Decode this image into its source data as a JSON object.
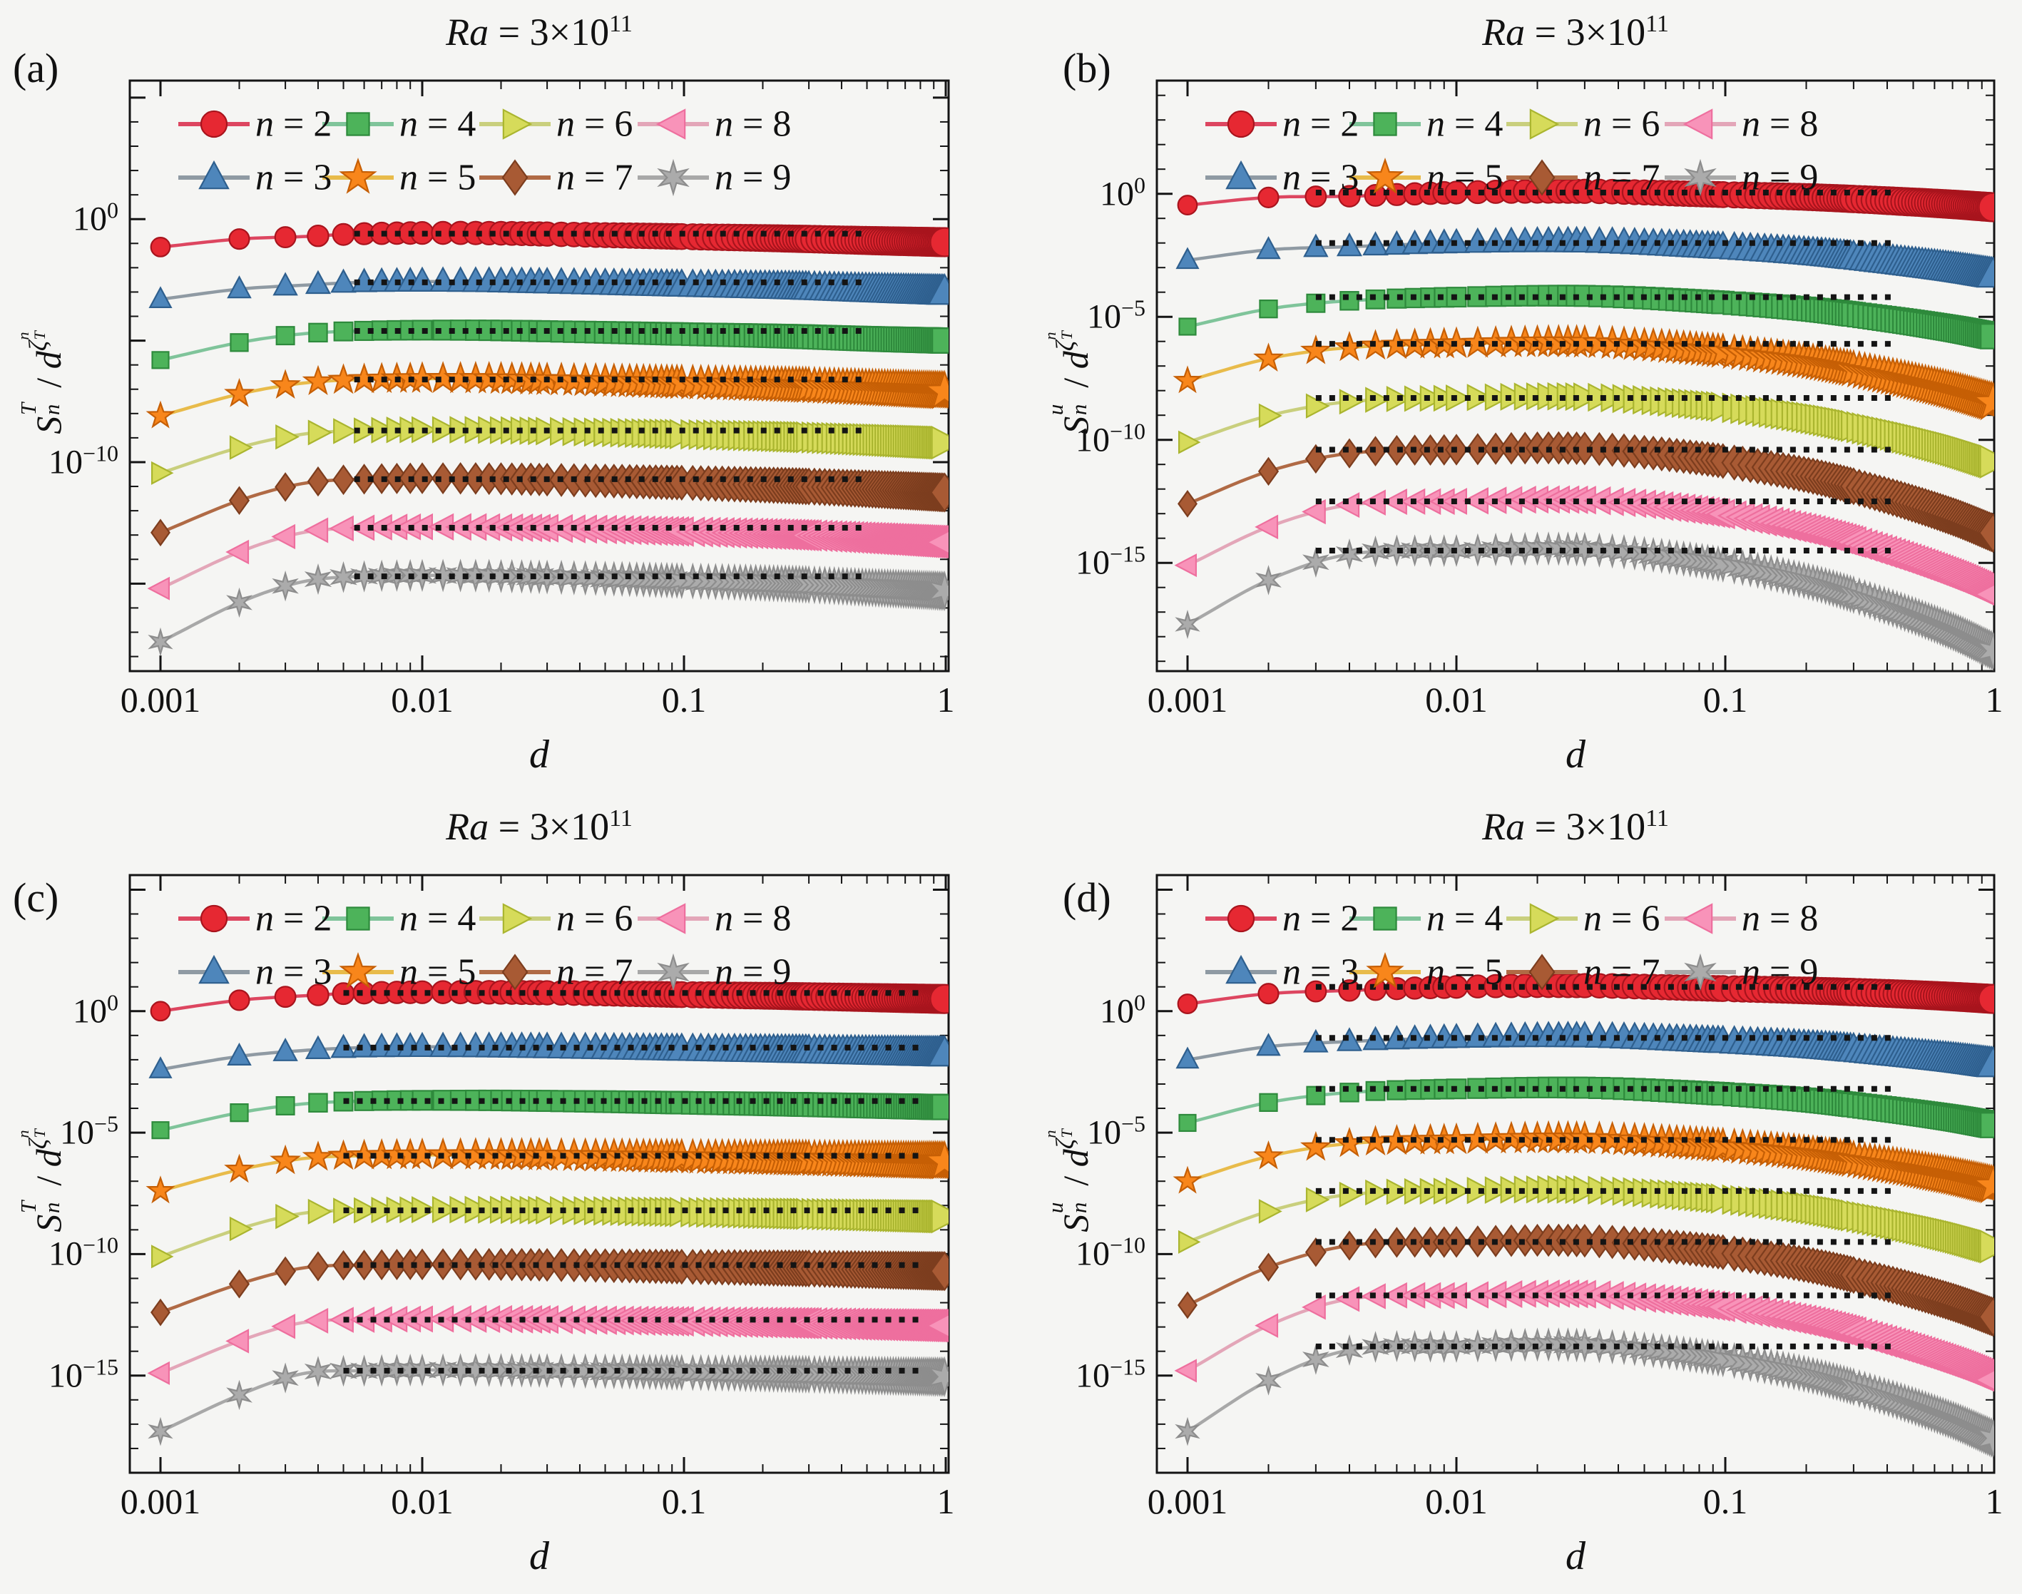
{
  "figure": {
    "background": "#f5f5f3",
    "frame_color": "#141414",
    "dotted_line_color": "#141414",
    "title": {
      "ra": "Ra",
      "eq": " = ",
      "mant": "3×10",
      "exp": "11"
    }
  },
  "legend": {
    "n_symbol": "n",
    "items": [
      {
        "n": 2,
        "suffix": " = 2"
      },
      {
        "n": 3,
        "suffix": " = 3"
      },
      {
        "n": 4,
        "suffix": " = 4"
      },
      {
        "n": 5,
        "suffix": " = 5"
      },
      {
        "n": 6,
        "suffix": " = 6"
      },
      {
        "n": 7,
        "suffix": " = 7"
      },
      {
        "n": 8,
        "suffix": " = 8"
      },
      {
        "n": 9,
        "suffix": " = 9"
      }
    ]
  },
  "series_style": [
    {
      "n": 2,
      "marker": "circle",
      "fill": "#e62832",
      "edge": "#a8141d",
      "line": "#dd4660"
    },
    {
      "n": 3,
      "marker": "tri-up",
      "fill": "#4e86bb",
      "edge": "#2e5f8e",
      "line": "#8f9aa3"
    },
    {
      "n": 4,
      "marker": "square",
      "fill": "#4db35a",
      "edge": "#2e8a3c",
      "line": "#7fc49a"
    },
    {
      "n": 5,
      "marker": "star5",
      "fill": "#f8861b",
      "edge": "#c65f05",
      "line": "#e8bb4a"
    },
    {
      "n": 6,
      "marker": "tri-right",
      "fill": "#d6db5a",
      "edge": "#aab52f",
      "line": "#c9cf7d"
    },
    {
      "n": 7,
      "marker": "diamond",
      "fill": "#a85a34",
      "edge": "#7c3d1e",
      "line": "#b06a45"
    },
    {
      "n": 8,
      "marker": "tri-left",
      "fill": "#f893b9",
      "edge": "#ee6f9e",
      "line": "#e3a6b8"
    },
    {
      "n": 9,
      "marker": "star6",
      "fill": "#ababab",
      "edge": "#8d8d8d",
      "line": "#a8a8a8"
    }
  ],
  "axes": {
    "xlabel": "d",
    "pow_base": "10",
    "xticks": [
      "0.001",
      "0.01",
      "0.1",
      "1"
    ],
    "xtick_exps": [
      -3,
      -2,
      -1,
      0
    ]
  },
  "chart_data": [
    {
      "id": "a",
      "tag": "(a)",
      "type": "line",
      "x_scale": "log",
      "y_scale": "log",
      "title": "Ra = 3×10^11",
      "ylabel": {
        "s": "S",
        "s_sub": "n",
        "s_sup": "T",
        "slash": "/ ",
        "d": "d",
        "zeta": "ζ",
        "zeta_sub": "T",
        "zeta_sup": "n"
      },
      "ylim_log": [
        5.7,
        -18.6
      ],
      "xlim_log": [
        -3.12,
        0.01
      ],
      "ytick_exps": [
        0,
        -10
      ],
      "ytick_labels": [
        "0",
        "−10"
      ],
      "dotted_range": [
        0.0055,
        0.48
      ],
      "anchor_d": [
        0.001,
        0.002,
        0.0035,
        0.006,
        0.015,
        0.04,
        0.1,
        0.25,
        0.5,
        1.0
      ],
      "series": [
        {
          "n": 2,
          "plateau_log": -0.6,
          "values_log": [
            -1.15,
            -0.82,
            -0.72,
            -0.6,
            -0.57,
            -0.64,
            -0.72,
            -0.8,
            -0.88,
            -0.95
          ]
        },
        {
          "n": 3,
          "plateau_log": -2.6,
          "values_log": [
            -3.3,
            -2.88,
            -2.72,
            -2.6,
            -2.57,
            -2.64,
            -2.72,
            -2.8,
            -2.9,
            -3.0
          ]
        },
        {
          "n": 4,
          "plateau_log": -4.6,
          "values_log": [
            -5.8,
            -5.08,
            -4.72,
            -4.6,
            -4.57,
            -4.64,
            -4.73,
            -4.82,
            -4.92,
            -5.0
          ]
        },
        {
          "n": 5,
          "plateau_log": -6.6,
          "values_log": [
            -8.1,
            -7.2,
            -6.75,
            -6.6,
            -6.57,
            -6.65,
            -6.75,
            -6.85,
            -6.97,
            -7.1
          ]
        },
        {
          "n": 6,
          "plateau_log": -8.7,
          "values_log": [
            -10.45,
            -9.4,
            -8.85,
            -8.7,
            -8.67,
            -8.75,
            -8.85,
            -8.95,
            -9.07,
            -9.2
          ]
        },
        {
          "n": 7,
          "plateau_log": -10.7,
          "values_log": [
            -12.9,
            -11.58,
            -10.88,
            -10.7,
            -10.67,
            -10.75,
            -10.85,
            -10.97,
            -11.1,
            -11.25
          ]
        },
        {
          "n": 8,
          "plateau_log": -12.7,
          "values_log": [
            -15.2,
            -13.7,
            -12.9,
            -12.7,
            -12.67,
            -12.75,
            -12.86,
            -12.98,
            -13.13,
            -13.3
          ]
        },
        {
          "n": 9,
          "plateau_log": -14.7,
          "values_log": [
            -17.4,
            -15.78,
            -14.92,
            -14.7,
            -14.67,
            -14.76,
            -14.88,
            -15.0,
            -15.15,
            -15.3
          ]
        }
      ]
    },
    {
      "id": "b",
      "tag": "(b)",
      "type": "line",
      "x_scale": "log",
      "y_scale": "log",
      "title": "Ra = 3×10^11",
      "ylabel": {
        "s": "S",
        "s_sub": "n",
        "s_sup": "u",
        "slash": "/ ",
        "d": "d",
        "zeta": "ζ",
        "zeta_sub": "T",
        "zeta_sup": "n"
      },
      "ylim_log": [
        4.6,
        -19.4
      ],
      "xlim_log": [
        -3.11,
        0.0
      ],
      "ytick_exps": [
        0,
        -5,
        -10,
        -15
      ],
      "ytick_labels": [
        "0",
        "−5",
        "−10",
        "−15"
      ],
      "dotted_range": [
        0.003,
        0.42
      ],
      "anchor_d": [
        0.001,
        0.002,
        0.004,
        0.01,
        0.03,
        0.08,
        0.2,
        0.4,
        0.7,
        1.0
      ],
      "series": [
        {
          "n": 2,
          "plateau_log": 0.05,
          "values_log": [
            -0.46,
            -0.15,
            -0.1,
            0.05,
            0.1,
            -0.01,
            -0.13,
            -0.28,
            -0.43,
            -0.55
          ]
        },
        {
          "n": 3,
          "plateau_log": -2.0,
          "values_log": [
            -2.7,
            -2.28,
            -2.15,
            -2.0,
            -1.95,
            -2.13,
            -2.39,
            -2.72,
            -3.04,
            -3.3
          ]
        },
        {
          "n": 4,
          "plateau_log": -4.2,
          "values_log": [
            -5.4,
            -4.68,
            -4.35,
            -4.2,
            -4.15,
            -4.36,
            -4.68,
            -5.08,
            -5.48,
            -5.8
          ]
        },
        {
          "n": 5,
          "plateau_log": -6.1,
          "values_log": [
            -7.6,
            -6.7,
            -6.25,
            -6.1,
            -6.05,
            -6.34,
            -6.82,
            -7.42,
            -8.02,
            -8.5
          ]
        },
        {
          "n": 6,
          "plateau_log": -8.3,
          "values_log": [
            -10.1,
            -9.02,
            -8.45,
            -8.3,
            -8.25,
            -8.56,
            -9.08,
            -9.73,
            -10.38,
            -10.9
          ]
        },
        {
          "n": 7,
          "plateau_log": -10.4,
          "values_log": [
            -12.6,
            -11.28,
            -10.55,
            -10.4,
            -10.35,
            -10.74,
            -11.42,
            -12.27,
            -13.12,
            -13.8
          ]
        },
        {
          "n": 8,
          "plateau_log": -12.5,
          "values_log": [
            -15.1,
            -13.54,
            -12.65,
            -12.5,
            -12.45,
            -12.88,
            -13.64,
            -14.59,
            -15.54,
            -16.3
          ]
        },
        {
          "n": 9,
          "plateau_log": -14.5,
          "values_log": [
            -17.5,
            -15.7,
            -14.65,
            -14.5,
            -14.45,
            -14.91,
            -15.73,
            -16.76,
            -17.78,
            -18.6
          ]
        }
      ]
    },
    {
      "id": "c",
      "tag": "(c)",
      "type": "line",
      "x_scale": "log",
      "y_scale": "log",
      "title": "Ra = 3×10^11",
      "ylabel": {
        "s": "S",
        "s_sub": "n",
        "s_sup": "T",
        "slash": "/ ",
        "d": "d",
        "zeta": "ζ",
        "zeta_sub": "T",
        "zeta_sup": "n"
      },
      "ylim_log": [
        5.6,
        -19.0
      ],
      "xlim_log": [
        -3.12,
        0.01
      ],
      "ytick_exps": [
        0,
        -5,
        -10,
        -15
      ],
      "ytick_labels": [
        "0",
        "−5",
        "−10",
        "−15"
      ],
      "dotted_range": [
        0.005,
        0.8
      ],
      "anchor_d": [
        0.001,
        0.002,
        0.0035,
        0.006,
        0.015,
        0.04,
        0.1,
        0.25,
        0.5,
        1.0
      ],
      "series": [
        {
          "n": 2,
          "plateau_log": 0.75,
          "values_log": [
            0.0,
            0.45,
            0.63,
            0.75,
            0.78,
            0.74,
            0.68,
            0.62,
            0.56,
            0.5
          ]
        },
        {
          "n": 3,
          "plateau_log": -1.5,
          "values_log": [
            -2.4,
            -1.86,
            -1.62,
            -1.5,
            -1.47,
            -1.51,
            -1.57,
            -1.63,
            -1.69,
            -1.75
          ]
        },
        {
          "n": 4,
          "plateau_log": -3.7,
          "values_log": [
            -4.9,
            -4.18,
            -3.82,
            -3.7,
            -3.67,
            -3.71,
            -3.77,
            -3.83,
            -3.89,
            -3.95
          ]
        },
        {
          "n": 5,
          "plateau_log": -5.95,
          "values_log": [
            -7.4,
            -6.53,
            -6.07,
            -5.95,
            -5.92,
            -5.96,
            -6.02,
            -6.08,
            -6.14,
            -6.2
          ]
        },
        {
          "n": 6,
          "plateau_log": -8.2,
          "values_log": [
            -10.1,
            -8.96,
            -8.32,
            -8.2,
            -8.17,
            -8.21,
            -8.27,
            -8.33,
            -8.39,
            -8.45
          ]
        },
        {
          "n": 7,
          "plateau_log": -10.45,
          "values_log": [
            -12.4,
            -11.23,
            -10.57,
            -10.45,
            -10.42,
            -10.46,
            -10.52,
            -10.58,
            -10.64,
            -10.7
          ]
        },
        {
          "n": 8,
          "plateau_log": -12.7,
          "values_log": [
            -14.9,
            -13.58,
            -12.82,
            -12.7,
            -12.67,
            -12.71,
            -12.77,
            -12.83,
            -12.89,
            -12.95
          ]
        },
        {
          "n": 9,
          "plateau_log": -14.8,
          "values_log": [
            -17.3,
            -15.8,
            -14.92,
            -14.8,
            -14.77,
            -14.81,
            -14.87,
            -14.93,
            -14.99,
            -15.05
          ]
        }
      ]
    },
    {
      "id": "d",
      "tag": "(d)",
      "type": "line",
      "x_scale": "log",
      "y_scale": "log",
      "title": "Ra = 3×10^11",
      "ylabel": {
        "s": "S",
        "s_sub": "n",
        "s_sup": "u",
        "slash": "/ ",
        "d": "d",
        "zeta": "ζ",
        "zeta_sub": "T",
        "zeta_sup": "n"
      },
      "ylim_log": [
        5.6,
        -19.0
      ],
      "xlim_log": [
        -3.11,
        0.0
      ],
      "ytick_exps": [
        0,
        -5,
        -10,
        -15
      ],
      "ytick_labels": [
        "0",
        "−5",
        "−10",
        "−15"
      ],
      "dotted_range": [
        0.003,
        0.42
      ],
      "anchor_d": [
        0.001,
        0.002,
        0.004,
        0.01,
        0.03,
        0.08,
        0.2,
        0.4,
        0.7,
        1.0
      ],
      "series": [
        {
          "n": 2,
          "plateau_log": 1.0,
          "values_log": [
            0.3,
            0.72,
            0.85,
            1.0,
            1.05,
            0.95,
            0.85,
            0.73,
            0.6,
            0.5
          ]
        },
        {
          "n": 3,
          "plateau_log": -1.1,
          "values_log": [
            -2.0,
            -1.46,
            -1.25,
            -1.1,
            -1.05,
            -1.21,
            -1.43,
            -1.71,
            -1.98,
            -2.2
          ]
        },
        {
          "n": 4,
          "plateau_log": -3.2,
          "values_log": [
            -4.6,
            -3.76,
            -3.35,
            -3.2,
            -3.15,
            -3.35,
            -3.65,
            -4.03,
            -4.4,
            -4.7
          ]
        },
        {
          "n": 5,
          "plateau_log": -5.3,
          "values_log": [
            -7.0,
            -5.98,
            -5.45,
            -5.3,
            -5.25,
            -5.49,
            -5.87,
            -6.35,
            -6.82,
            -7.2
          ]
        },
        {
          "n": 6,
          "plateau_log": -7.4,
          "values_log": [
            -9.5,
            -8.24,
            -7.55,
            -7.4,
            -7.35,
            -7.63,
            -8.09,
            -8.67,
            -9.24,
            -9.7
          ]
        },
        {
          "n": 7,
          "plateau_log": -9.5,
          "values_log": [
            -12.1,
            -10.54,
            -9.65,
            -9.5,
            -9.45,
            -9.81,
            -10.43,
            -11.21,
            -11.98,
            -12.6
          ]
        },
        {
          "n": 8,
          "plateau_log": -11.7,
          "values_log": [
            -14.8,
            -12.94,
            -11.85,
            -11.7,
            -11.65,
            -12.05,
            -12.75,
            -13.63,
            -14.5,
            -15.2
          ]
        },
        {
          "n": 9,
          "plateau_log": -13.8,
          "values_log": [
            -17.3,
            -15.2,
            -13.95,
            -13.8,
            -13.75,
            -14.18,
            -14.94,
            -15.89,
            -16.84,
            -17.6
          ]
        }
      ]
    }
  ]
}
